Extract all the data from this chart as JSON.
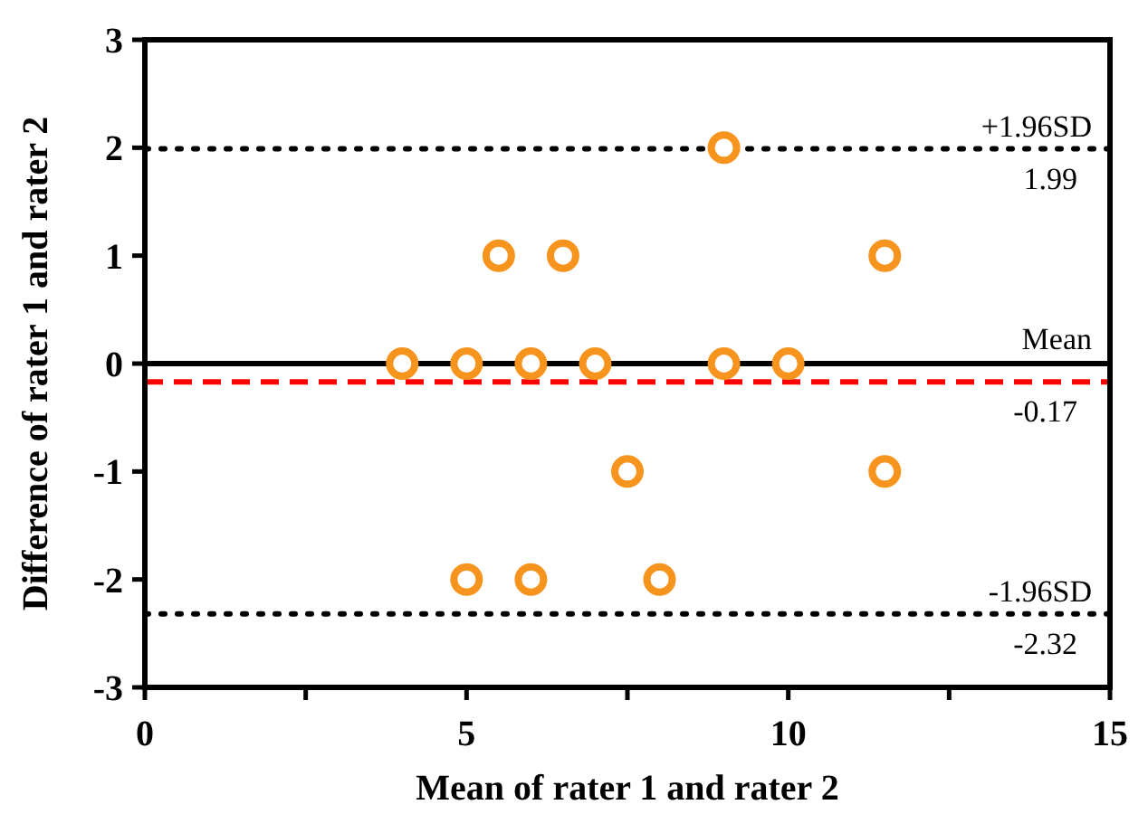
{
  "chart_data": {
    "type": "scatter",
    "xlabel": "Mean of rater 1 and rater 2",
    "ylabel": "Difference of rater 1 and rater 2",
    "x": [
      4,
      5,
      6,
      7,
      9,
      10,
      5.5,
      6.5,
      11.5,
      9,
      7.5,
      11.5,
      5,
      6,
      8
    ],
    "series": [
      {
        "color": "#f7941d",
        "values": [
          0,
          0,
          0,
          0,
          0,
          0,
          1,
          1,
          1,
          2,
          -1,
          -1,
          -2,
          -2,
          -2
        ]
      }
    ],
    "marker": "circle",
    "xlim": [
      0,
      15
    ],
    "xticks": [
      0,
      {
        "value": 2.5,
        "label": null
      },
      5,
      {
        "value": 7.5,
        "label": null
      },
      10,
      {
        "value": 12.5,
        "label": null
      },
      15
    ],
    "ylim": [
      -3,
      3
    ],
    "yticks": [
      -3,
      -2,
      -1,
      0,
      1,
      2,
      3
    ],
    "ref_lines": [
      {
        "axis": "y",
        "value": 0,
        "color": "#000000",
        "line_style": "solid"
      },
      {
        "axis": "y",
        "value": 1.99,
        "label": "+1.96SD",
        "color": "#000000",
        "line_style": "dotted"
      },
      {
        "axis": "y",
        "value": -0.17,
        "label": "Mean",
        "color": "#ff0000",
        "line_style": "dashed"
      },
      {
        "axis": "y",
        "value": -2.32,
        "label": "-1.96SD",
        "color": "#000000",
        "line_style": "dotted"
      }
    ],
    "annotations": [
      {
        "text": "1.99",
        "y": 1.99
      },
      {
        "text": "-0.17",
        "y": -0.17
      },
      {
        "text": "-2.32",
        "y": -2.32
      }
    ],
    "grid": false
  }
}
